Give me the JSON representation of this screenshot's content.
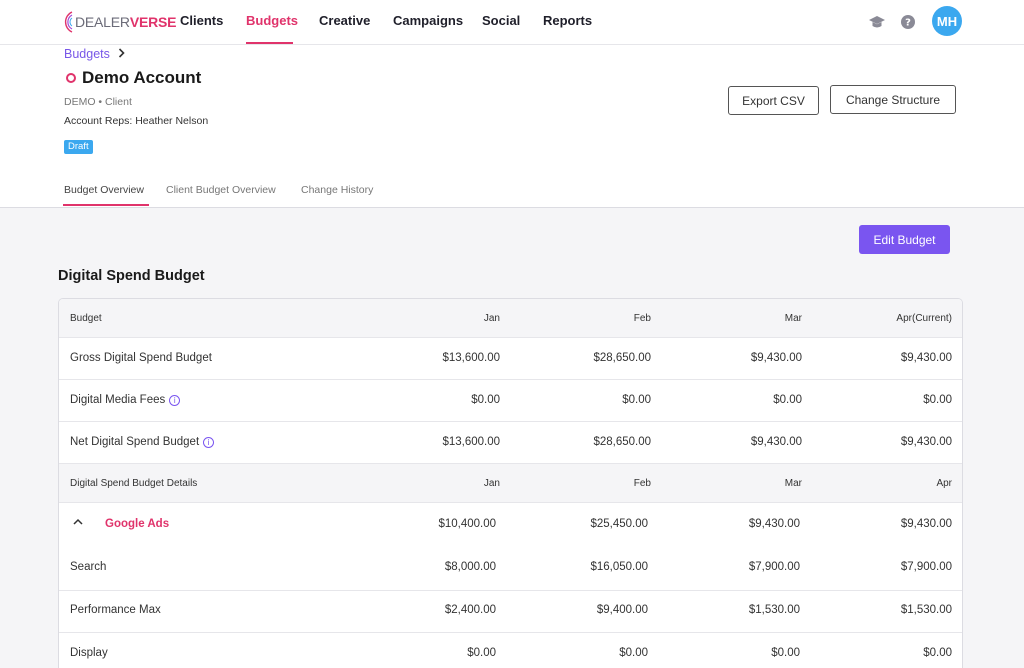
{
  "brand": {
    "logo_part1": "DEALER",
    "logo_part2": "VERSE",
    "accent": "#e0336b",
    "purple": "#7a55f0",
    "blue": "#3ba8ef"
  },
  "nav": {
    "items": [
      {
        "label": "Clients"
      },
      {
        "label": "Budgets",
        "active": true
      },
      {
        "label": "Creative"
      },
      {
        "label": "Campaigns"
      },
      {
        "label": "Social"
      },
      {
        "label": "Reports"
      }
    ],
    "icons": [
      "graduation-cap-icon",
      "help-icon"
    ],
    "avatar_initials": "MH"
  },
  "breadcrumb": {
    "label": "Budgets",
    "sep": ">"
  },
  "account": {
    "title": "Demo Account",
    "meta": "DEMO • Client",
    "reps": "Account Reps: Heather Nelson",
    "status_badge": "Draft"
  },
  "actions": {
    "export_csv": "Export CSV",
    "change_structure": "Change Structure",
    "edit_budget": "Edit Budget"
  },
  "tabs": [
    {
      "label": "Budget Overview",
      "active": true
    },
    {
      "label": "Client Budget Overview"
    },
    {
      "label": "Change History"
    }
  ],
  "section_title": "Digital Spend Budget",
  "table": {
    "header": {
      "label": "Budget",
      "months": [
        "Jan",
        "Feb",
        "Mar",
        "Apr(Current)"
      ]
    },
    "summary_rows": [
      {
        "label": "Gross Digital Spend Budget",
        "info": false,
        "values": [
          "$13,600.00",
          "$28,650.00",
          "$9,430.00",
          "$9,430.00"
        ]
      },
      {
        "label": "Digital Media Fees",
        "info": true,
        "values": [
          "$0.00",
          "$0.00",
          "$0.00",
          "$0.00"
        ]
      },
      {
        "label": "Net Digital Spend Budget",
        "info": true,
        "values": [
          "$13,600.00",
          "$28,650.00",
          "$9,430.00",
          "$9,430.00"
        ]
      }
    ],
    "details_header": {
      "label": "Digital Spend Budget Details",
      "months": [
        "Jan",
        "Feb",
        "Mar",
        "Apr"
      ]
    },
    "group": {
      "label": "Google Ads",
      "caret": "^",
      "values": [
        "$10,400.00",
        "$25,450.00",
        "$9,430.00",
        "$9,430.00"
      ]
    },
    "detail_rows": [
      {
        "label": "Search",
        "values": [
          "$8,000.00",
          "$16,050.00",
          "$7,900.00",
          "$7,900.00"
        ]
      },
      {
        "label": "Performance Max",
        "values": [
          "$2,400.00",
          "$9,400.00",
          "$1,530.00",
          "$1,530.00"
        ]
      },
      {
        "label": "Display",
        "values": [
          "$0.00",
          "$0.00",
          "$0.00",
          "$0.00"
        ]
      }
    ]
  }
}
